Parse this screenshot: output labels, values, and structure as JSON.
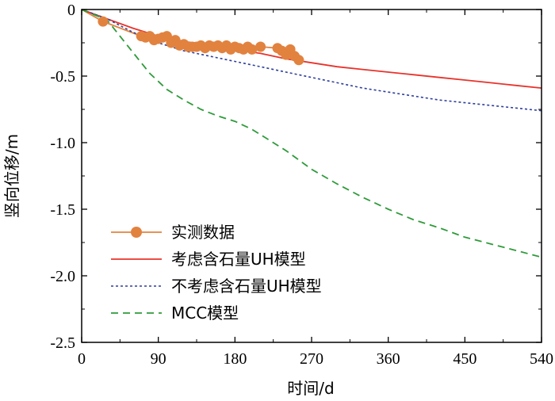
{
  "chart_data": {
    "type": "line",
    "title": "",
    "xlabel": "时间/d",
    "ylabel": "竖向位移/m",
    "xlim": [
      0,
      540
    ],
    "ylim": [
      -2.5,
      0
    ],
    "xticks": [
      0,
      90,
      180,
      270,
      360,
      450,
      540
    ],
    "xtick_labels": [
      "0",
      "90",
      "180",
      "270",
      "360",
      "450",
      "540"
    ],
    "yticks": [
      0,
      -0.5,
      -1.0,
      -1.5,
      -2.0,
      -2.5
    ],
    "ytick_labels": [
      "0",
      "-0.5",
      "-1.0",
      "-1.5",
      "-2.0",
      "-2.5"
    ],
    "grid": false,
    "legend_position": "bottom-left",
    "series": [
      {
        "name": "实测数据",
        "style": "line-markers",
        "color": "#E2823F",
        "x": [
          0,
          25,
          70,
          75,
          80,
          85,
          90,
          95,
          100,
          105,
          110,
          115,
          120,
          125,
          130,
          135,
          140,
          145,
          150,
          155,
          160,
          165,
          170,
          175,
          180,
          185,
          190,
          195,
          200,
          210,
          230,
          235,
          240,
          245,
          250,
          255
        ],
        "y": [
          0,
          -0.09,
          -0.2,
          -0.21,
          -0.2,
          -0.23,
          -0.22,
          -0.21,
          -0.2,
          -0.25,
          -0.23,
          -0.27,
          -0.26,
          -0.28,
          -0.28,
          -0.28,
          -0.27,
          -0.29,
          -0.27,
          -0.28,
          -0.27,
          -0.29,
          -0.27,
          -0.3,
          -0.28,
          -0.29,
          -0.3,
          -0.28,
          -0.3,
          -0.28,
          -0.29,
          -0.31,
          -0.34,
          -0.3,
          -0.35,
          -0.38
        ]
      },
      {
        "name": "考虑含石量UH模型",
        "style": "solid",
        "color": "#E8332B",
        "x": [
          0,
          30,
          60,
          90,
          120,
          150,
          180,
          210,
          240,
          270,
          300,
          330,
          360,
          390,
          420,
          450,
          480,
          510,
          540
        ],
        "y": [
          0,
          -0.07,
          -0.14,
          -0.2,
          -0.24,
          -0.27,
          -0.3,
          -0.33,
          -0.37,
          -0.4,
          -0.43,
          -0.45,
          -0.47,
          -0.49,
          -0.51,
          -0.53,
          -0.55,
          -0.57,
          -0.59
        ]
      },
      {
        "name": "不考虑含石量UH模型",
        "style": "dotted",
        "color": "#2E3F9A",
        "x": [
          0,
          30,
          60,
          90,
          120,
          150,
          180,
          210,
          240,
          270,
          300,
          330,
          360,
          390,
          420,
          450,
          480,
          510,
          540
        ],
        "y": [
          0,
          -0.07,
          -0.17,
          -0.25,
          -0.31,
          -0.35,
          -0.39,
          -0.43,
          -0.47,
          -0.51,
          -0.55,
          -0.59,
          -0.62,
          -0.65,
          -0.68,
          -0.7,
          -0.72,
          -0.74,
          -0.76
        ]
      },
      {
        "name": "MCC模型",
        "style": "dashed",
        "color": "#2E9B3A",
        "x": [
          0,
          30,
          60,
          80,
          90,
          100,
          120,
          140,
          160,
          180,
          200,
          220,
          240,
          270,
          300,
          330,
          360,
          390,
          420,
          450,
          480,
          510,
          540
        ],
        "y": [
          0,
          -0.08,
          -0.32,
          -0.48,
          -0.54,
          -0.6,
          -0.68,
          -0.75,
          -0.8,
          -0.84,
          -0.9,
          -0.98,
          -1.06,
          -1.2,
          -1.31,
          -1.41,
          -1.5,
          -1.58,
          -1.64,
          -1.71,
          -1.76,
          -1.81,
          -1.86
        ]
      }
    ]
  }
}
